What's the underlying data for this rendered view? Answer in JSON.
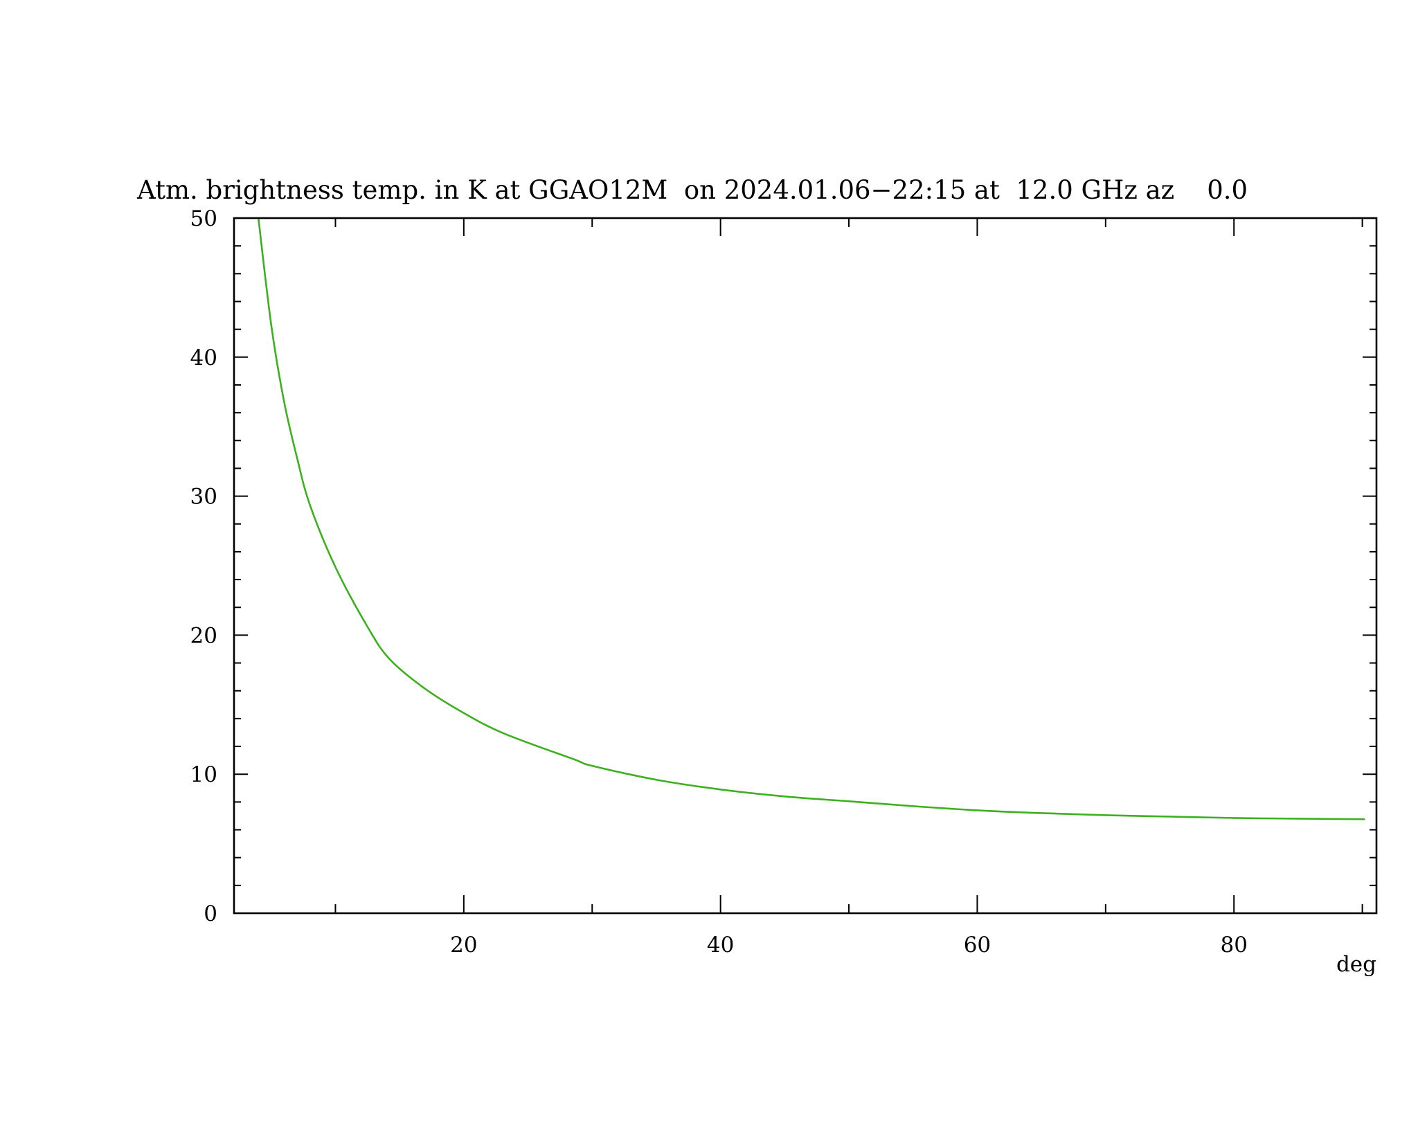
{
  "chart_data": {
    "type": "line",
    "title": "Atm. brightness temp. in K at GGAO12M  on 2024.01.06−22:15 at  12.0 GHz az    0.0",
    "xlabel": "deg",
    "ylabel": "",
    "xlim": [
      2.1,
      91.1
    ],
    "ylim": [
      0,
      50
    ],
    "x_ticks": [
      20,
      40,
      60,
      80
    ],
    "x_tick_labels": [
      "20",
      "40",
      "60",
      "80"
    ],
    "x_minor_ticks": [
      10,
      30,
      50,
      70,
      90
    ],
    "y_ticks": [
      0,
      10,
      20,
      30,
      40,
      50
    ],
    "y_tick_labels": [
      "0",
      "10",
      "20",
      "30",
      "40",
      "50"
    ],
    "y_minor_step": 2,
    "grid": false,
    "series": [
      {
        "color": "#3cb01e",
        "x": [
          4.0,
          5.0,
          6.0,
          7.0,
          8.0,
          10.0,
          12.5,
          14.2,
          16.9,
          20.0,
          23.2,
          28.5,
          30.0,
          35.0,
          40.0,
          45.0,
          50.0,
          55.0,
          60.0,
          65.0,
          70.0,
          75.0,
          80.0,
          85.0,
          90.2
        ],
        "y": [
          50.0,
          42.3,
          36.8,
          32.8,
          29.4,
          24.9,
          20.6,
          18.3,
          16.2,
          14.4,
          12.9,
          11.1,
          10.6,
          9.6,
          8.9,
          8.4,
          8.05,
          7.7,
          7.4,
          7.2,
          7.05,
          6.95,
          6.85,
          6.8,
          6.76
        ]
      }
    ]
  }
}
